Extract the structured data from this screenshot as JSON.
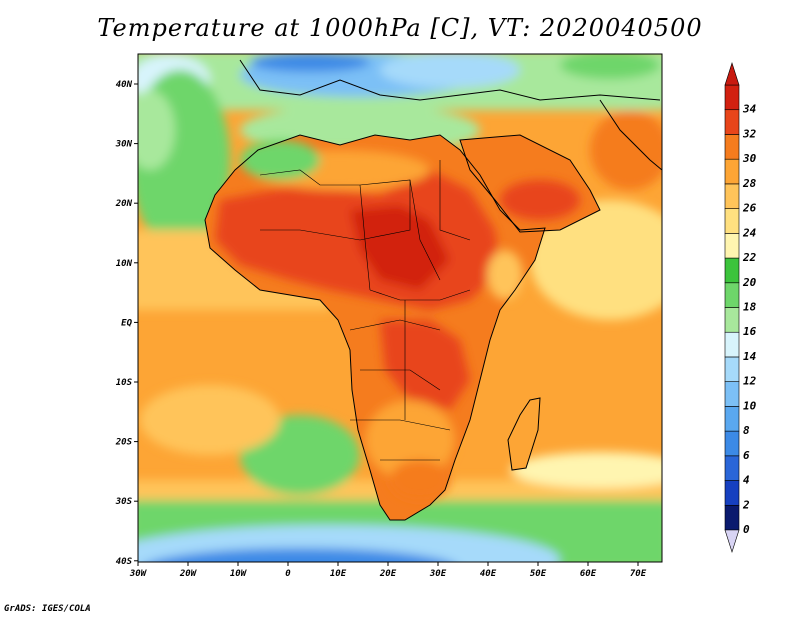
{
  "title": "Temperature at 1000hPa [C], VT: 2020040500",
  "footer": "GrADS: IGES/COLA",
  "map": {
    "lat_ticks": [
      "40N",
      "30N",
      "20N",
      "10N",
      "EQ",
      "10S",
      "20S",
      "30S",
      "40S"
    ],
    "lon_ticks": [
      "30W",
      "20W",
      "10W",
      "0",
      "10E",
      "20E",
      "30E",
      "40E",
      "50E",
      "60E",
      "70E"
    ]
  },
  "colorbar": {
    "labels": [
      "0",
      "2",
      "4",
      "6",
      "8",
      "10",
      "12",
      "14",
      "16",
      "18",
      "20",
      "22",
      "24",
      "26",
      "28",
      "30",
      "32",
      "34"
    ],
    "colors": [
      "#0a1a6e",
      "#1640c0",
      "#2a66d8",
      "#3c8ae6",
      "#5aa8f0",
      "#7cc0f6",
      "#a6dafa",
      "#d8f4fc",
      "#a8e89c",
      "#6ed66a",
      "#3cc43c",
      "#fff5b0",
      "#ffe080",
      "#ffc45a",
      "#fda535",
      "#f57c1e",
      "#e8451a",
      "#d22010"
    ],
    "underflow_color": "#d8d4f4",
    "overflow_color": "#c81a10"
  }
}
